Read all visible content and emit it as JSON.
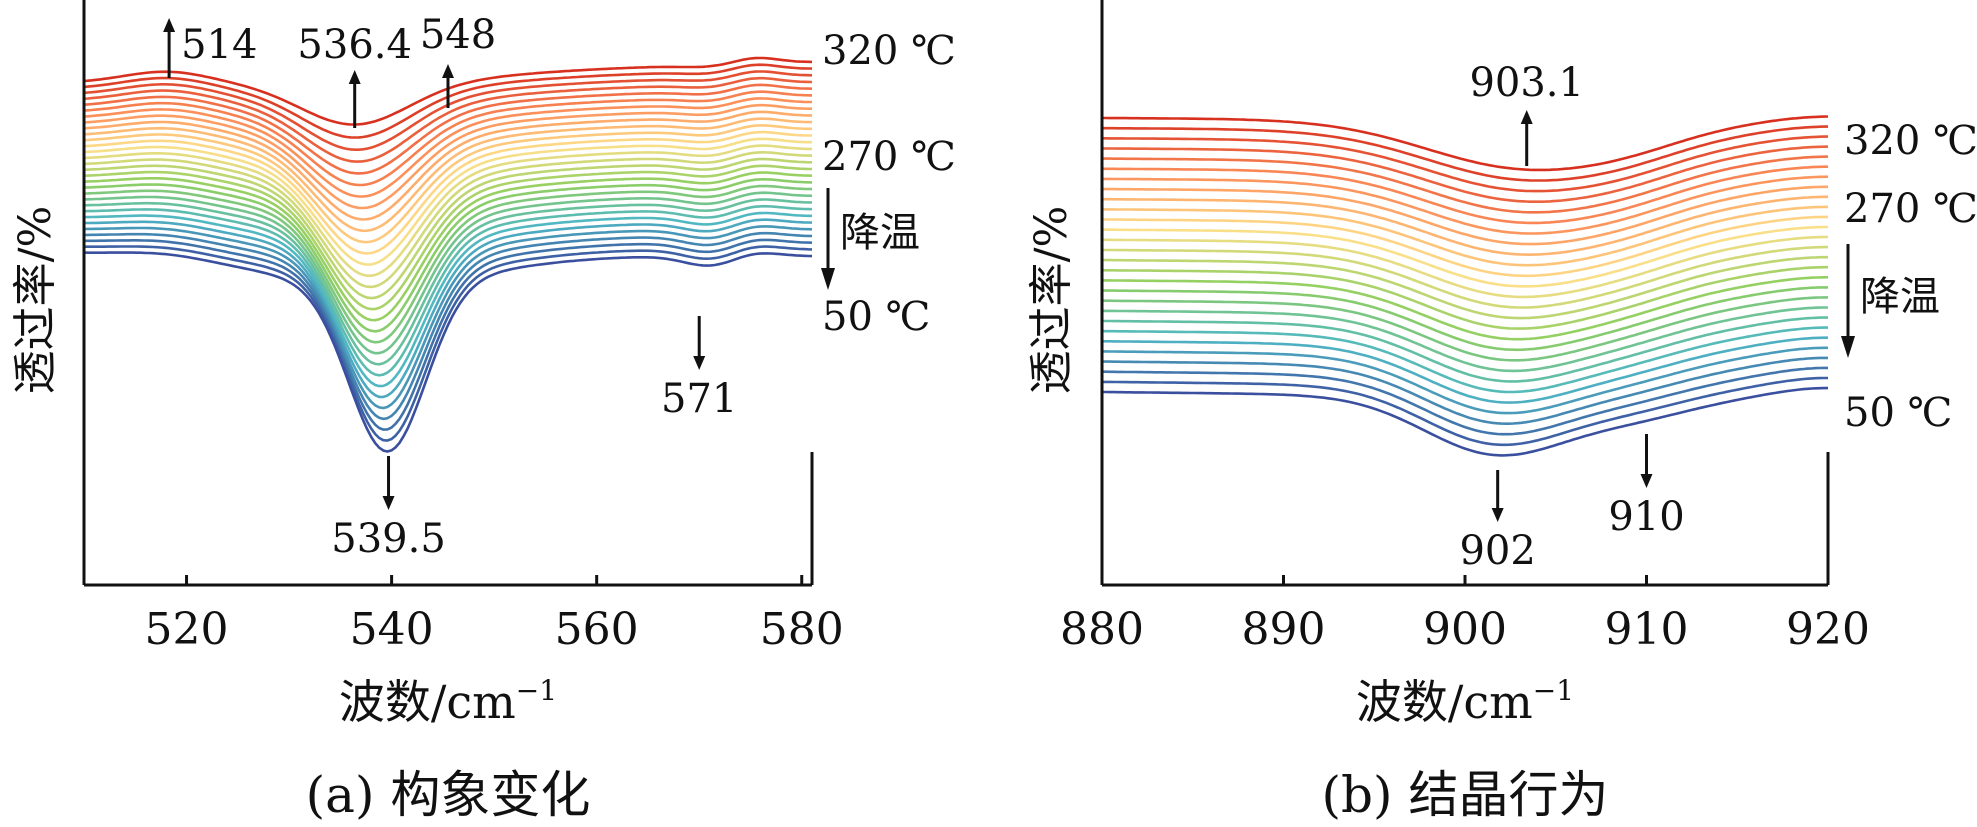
{
  "chart_data": [
    {
      "type": "line",
      "panel_caption": "(a) 构象变化",
      "ylabel": "透过率/%",
      "xlabel": "波数/cm",
      "xlabel_sup": "−1",
      "xlim": [
        510,
        581
      ],
      "xticks": [
        "520",
        "540",
        "560",
        "580"
      ],
      "xtick_values": [
        520,
        540,
        560,
        580
      ],
      "temperature_labels": [
        "320 ℃",
        "270 ℃",
        "50 ℃"
      ],
      "cooling_label": "降温",
      "series_count": 30,
      "series_note_colors": [
        "#d7301f",
        "#fc8d59",
        "#fee08b",
        "#91cf60",
        "#4fb7c4",
        "#3a4f9e"
      ],
      "annotations": [
        {
          "text": "514",
          "x": 518.3,
          "dir": "up"
        },
        {
          "text": "536.4",
          "x": 536.4,
          "dir": "up"
        },
        {
          "text": "548",
          "x": 545.5,
          "dir": "up"
        },
        {
          "text": "539.5",
          "x": 539.7,
          "dir": "down"
        },
        {
          "text": "571",
          "x": 570.0,
          "dir": "down"
        }
      ]
    },
    {
      "type": "line",
      "panel_caption": "(b) 结晶行为",
      "ylabel": "透过率/%",
      "xlabel": "波数/cm",
      "xlabel_sup": "−1",
      "xlim": [
        880,
        920
      ],
      "xticks": [
        "880",
        "890",
        "900",
        "910",
        "920"
      ],
      "xtick_values": [
        880,
        890,
        900,
        910,
        920
      ],
      "temperature_labels": [
        "320 ℃",
        "270 ℃",
        "50 ℃"
      ],
      "cooling_label": "降温",
      "series_count": 28,
      "series_note_colors": [
        "#d7301f",
        "#fc8d59",
        "#fee08b",
        "#91cf60",
        "#4fb7c4",
        "#3a4f9e"
      ],
      "annotations": [
        {
          "text": "903.1",
          "x": 903.4,
          "dir": "up"
        },
        {
          "text": "902",
          "x": 901.8,
          "dir": "down"
        },
        {
          "text": "910",
          "x": 910.0,
          "dir": "down"
        }
      ]
    }
  ]
}
